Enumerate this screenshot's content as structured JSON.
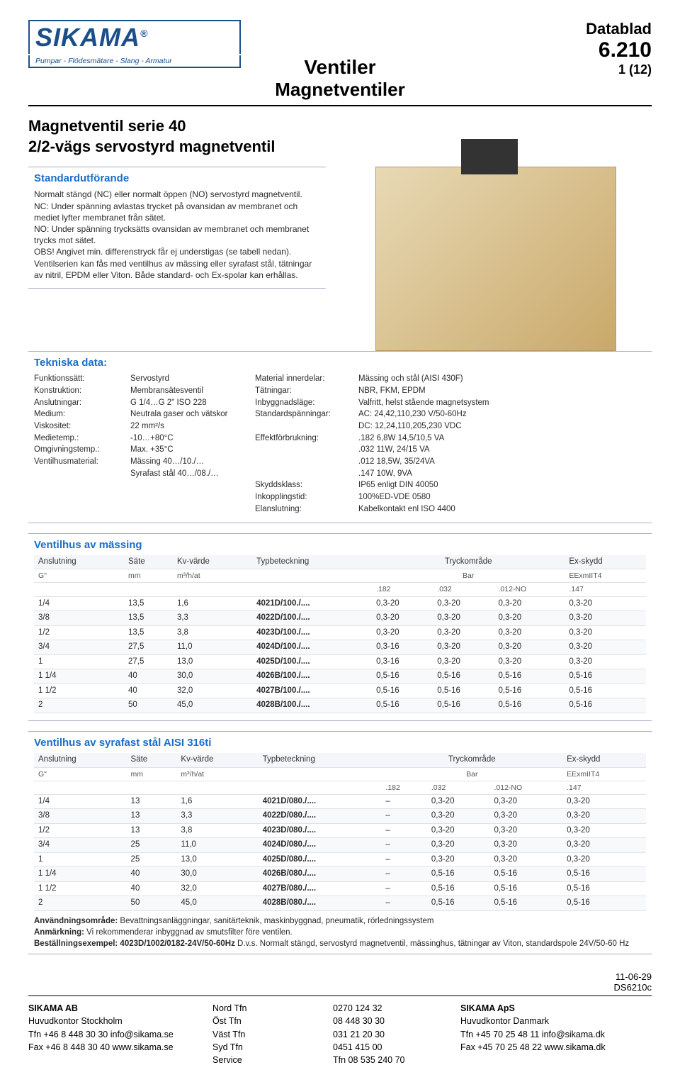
{
  "header": {
    "logo_name": "SIKAMA",
    "logo_tagline": "Pumpar - Flödesmätare - Slang - Armatur",
    "datablad_label": "Datablad",
    "doc_number": "6.210",
    "page_label": "1 (12)",
    "title1": "Ventiler",
    "title2": "Magnetventiler"
  },
  "subtitle": {
    "line1": "Magnetventil serie 40",
    "line2": "2/2-vägs servostyrd magnetventil"
  },
  "standard": {
    "title": "Standardutförande",
    "body": "Normalt stängd (NC) eller normalt öppen (NO) servostyrd magnetventil.\nNC: Under spänning avlastas trycket på ovansidan av membranet och mediet lyfter membranet från sätet.\nNO: Under spänning trycksätts ovansidan av membranet och membranet trycks mot sätet.\nOBS! Angivet min. differenstryck får ej understigas (se tabell nedan).\nVentilserien kan fås med ventilhus av mässing eller syrafast stål, tätningar av nitril, EPDM eller Viton. Både standard- och Ex-spolar kan erhållas."
  },
  "tech": {
    "title": "Tekniska data:",
    "rows": [
      [
        "Funktionssätt:",
        "Servostyrd",
        "Material innerdelar:",
        "Mässing och stål (AISI 430F)"
      ],
      [
        "Konstruktion:",
        "Membransätesventil",
        "Tätningar:",
        "NBR, FKM, EPDM"
      ],
      [
        "Anslutningar:",
        "G 1/4…G 2\" ISO 228",
        "Inbyggnadsläge:",
        "Valfritt, helst stående magnetsystem"
      ],
      [
        "Medium:",
        "Neutrala gaser och vätskor",
        "Standardspänningar:",
        "AC: 24,42,110,230 V/50-60Hz"
      ],
      [
        "Viskositet:",
        "22 mm²/s",
        "",
        "DC: 12,24,110,205,230 VDC"
      ],
      [
        "Medietemp.:",
        "-10…+80°C",
        "Effektförbrukning:",
        ".182   6,8W  14,5/10,5 VA"
      ],
      [
        "Omgivningstemp.:",
        "Max. +35°C",
        "",
        ".032   11W, 24/15 VA"
      ],
      [
        "Ventilhusmaterial:",
        "Mässing 40…/10./…",
        "",
        ".012   18,5W, 35/24VA"
      ],
      [
        "",
        "Syrafast stål 40…/08./…",
        "",
        ".147   10W, 9VA"
      ],
      [
        "",
        "",
        "Skyddsklass:",
        "IP65 enligt DIN 40050"
      ],
      [
        "",
        "",
        "Inkopplingstid:",
        "100%ED-VDE 0580"
      ],
      [
        "",
        "",
        "Elanslutning:",
        "Kabelkontakt enl ISO 4400"
      ]
    ]
  },
  "table1": {
    "title": "Ventilhus av mässing",
    "cols": [
      "Anslutning",
      "Säte",
      "Kv-värde",
      "Typbeteckning",
      "Tryckområde",
      "Ex-skydd"
    ],
    "units": [
      "G\"",
      "mm",
      "m³/h/at",
      "",
      "Bar",
      "EExmIIT4"
    ],
    "press_sub": [
      ".182",
      ".032",
      ".012-NO",
      ".147"
    ],
    "rows": [
      [
        "1/4",
        "13,5",
        "1,6",
        "4021D/100./....",
        "0,3-20",
        "0,3-20",
        "0,3-20",
        "0,3-20"
      ],
      [
        "3/8",
        "13,5",
        "3,3",
        "4022D/100./....",
        "0,3-20",
        "0,3-20",
        "0,3-20",
        "0,3-20"
      ],
      [
        "1/2",
        "13,5",
        "3,8",
        "4023D/100./....",
        "0,3-20",
        "0,3-20",
        "0,3-20",
        "0,3-20"
      ],
      [
        "3/4",
        "27,5",
        "11,0",
        "4024D/100./....",
        "0,3-16",
        "0,3-20",
        "0,3-20",
        "0,3-20"
      ],
      [
        "1",
        "27,5",
        "13,0",
        "4025D/100./....",
        "0,3-16",
        "0,3-20",
        "0,3-20",
        "0,3-20"
      ],
      [
        "1 1/4",
        "40",
        "30,0",
        "4026B/100./....",
        "0,5-16",
        "0,5-16",
        "0,5-16",
        "0,5-16"
      ],
      [
        "1 1/2",
        "40",
        "32,0",
        "4027B/100./....",
        "0,5-16",
        "0,5-16",
        "0,5-16",
        "0,5-16"
      ],
      [
        "2",
        "50",
        "45,0",
        "4028B/100./....",
        "0,5-16",
        "0,5-16",
        "0,5-16",
        "0,5-16"
      ]
    ]
  },
  "table2": {
    "title": "Ventilhus av syrafast stål AISI 316ti",
    "cols": [
      "Anslutning",
      "Säte",
      "Kv-värde",
      "Typbeteckning",
      "Tryckområde",
      "Ex-skydd"
    ],
    "units": [
      "G\"",
      "mm",
      "m³/h/at",
      "",
      "Bar",
      "EExmIIT4"
    ],
    "press_sub": [
      ".182",
      ".032",
      ".012-NO",
      ".147"
    ],
    "rows": [
      [
        "1/4",
        "13",
        "1,6",
        "4021D/080./....",
        "–",
        "0,3-20",
        "0,3-20",
        "0,3-20"
      ],
      [
        "3/8",
        "13",
        "3,3",
        "4022D/080./....",
        "–",
        "0,3-20",
        "0,3-20",
        "0,3-20"
      ],
      [
        "1/2",
        "13",
        "3,8",
        "4023D/080./....",
        "–",
        "0,3-20",
        "0,3-20",
        "0,3-20"
      ],
      [
        "3/4",
        "25",
        "11,0",
        "4024D/080./....",
        "–",
        "0,3-20",
        "0,3-20",
        "0,3-20"
      ],
      [
        "1",
        "25",
        "13,0",
        "4025D/080./....",
        "–",
        "0,3-20",
        "0,3-20",
        "0,3-20"
      ],
      [
        "1 1/4",
        "40",
        "30,0",
        "4026B/080./....",
        "–",
        "0,5-16",
        "0,5-16",
        "0,5-16"
      ],
      [
        "1 1/2",
        "40",
        "32,0",
        "4027B/080./....",
        "–",
        "0,5-16",
        "0,5-16",
        "0,5-16"
      ],
      [
        "2",
        "50",
        "45,0",
        "4028B/080./....",
        "–",
        "0,5-16",
        "0,5-16",
        "0,5-16"
      ]
    ]
  },
  "notes": {
    "l1_label": "Användningsområde:",
    "l1_text": "Bevattningsanläggningar, sanitärteknik, maskinbyggnad, pneumatik, rörledningssystem",
    "l2_label": "Anmärkning:",
    "l2_text": "Vi rekommenderar inbyggnad av smutsfilter före ventilen.",
    "l3_label": "Beställningsexempel: 4023D/1002/0182-24V/50-60Hz",
    "l3_text": "D.v.s. Normalt stängd, servostyrd magnetventil, mässinghus, tätningar av Viton, standardspole 24V/50-60 Hz"
  },
  "footer_meta": {
    "date": "11-06-29",
    "code": "DS6210c"
  },
  "footer": {
    "c1": [
      "SIKAMA AB",
      "Huvudkontor Stockholm",
      "Tfn    +46 8 448 30 30      info@sikama.se",
      "Fax   +46 8 448 30 40      www.sikama.se"
    ],
    "c2": [
      "Nord  Tfn",
      "Öst    Tfn",
      "Väst  Tfn",
      "Syd   Tfn",
      "Service"
    ],
    "c3": [
      "0270 124 32",
      "08 448 30 30",
      "031 21 20 30",
      "0451 415 00",
      "Tfn    08 535 240 70"
    ],
    "c4": [
      "SIKAMA ApS",
      "Huvudkontor Danmark",
      "Tfn +45 70 25 48 11      info@sikama.dk",
      "Fax +45 70 25 48 22     www.sikama.dk"
    ]
  }
}
